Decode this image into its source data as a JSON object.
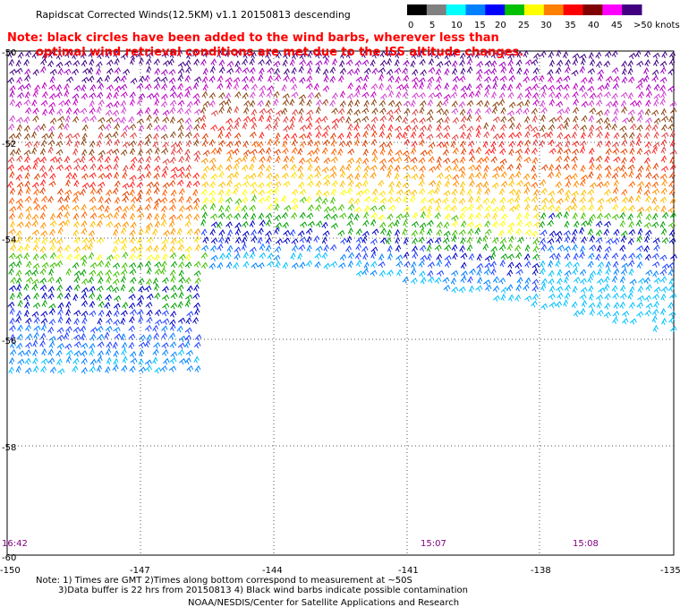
{
  "title": "Rapidscat Corrected Winds(12.5KM) v1.1 20150813 descending",
  "note_red": [
    "Note: black circles have been added to the wind barbs, wherever less than",
    "optimal wind retrieval conditions are met due to the ISS altitude changes."
  ],
  "legend": {
    "labels": [
      "0",
      "5",
      "10",
      "15",
      "20",
      "25",
      "30",
      "35",
      "40",
      "45",
      ">50 knots"
    ],
    "colors": [
      "#000000",
      "#808080",
      "#00ffff",
      "#0080ff",
      "#0000ff",
      "#00c000",
      "#ffff00",
      "#ff8000",
      "#ff0000",
      "#800000",
      "#ff00ff",
      "#400080"
    ]
  },
  "lat_labels": [
    "-50",
    "-52",
    "-54",
    "-56",
    "-58",
    "-60"
  ],
  "lon_labels": [
    "-150",
    "-147",
    "-144",
    "-141",
    "-138",
    "-135"
  ],
  "times": [
    "16:42",
    "15:07",
    "15:08"
  ],
  "footer": {
    "line1": "Note: 1) Times are GMT 2)Times along bottom correspond to measurement at ~50S",
    "line2": "3)Data buffer is 22 hrs from 20150813 4) Black wind barbs indicate possible contamination",
    "credit": "NOAA/NESDIS/Center for Satellite Applications and Research"
  },
  "map_data": {
    "projection": "lat/lon",
    "lon_range": [
      -150,
      -135
    ],
    "lat_range": [
      -60,
      -50
    ],
    "band_colors": [
      "#400080",
      "#a000c0",
      "#c000c0",
      "#d040d0",
      "#8b4513",
      "#e04040",
      "#ff2020",
      "#e04000",
      "#ff6000",
      "#ff9000",
      "#ffc000",
      "#ffe000",
      "#ffff00",
      "#40c000",
      "#00a000",
      "#0000c0",
      "#2040ff",
      "#0080ff",
      "#00c0ff"
    ]
  }
}
